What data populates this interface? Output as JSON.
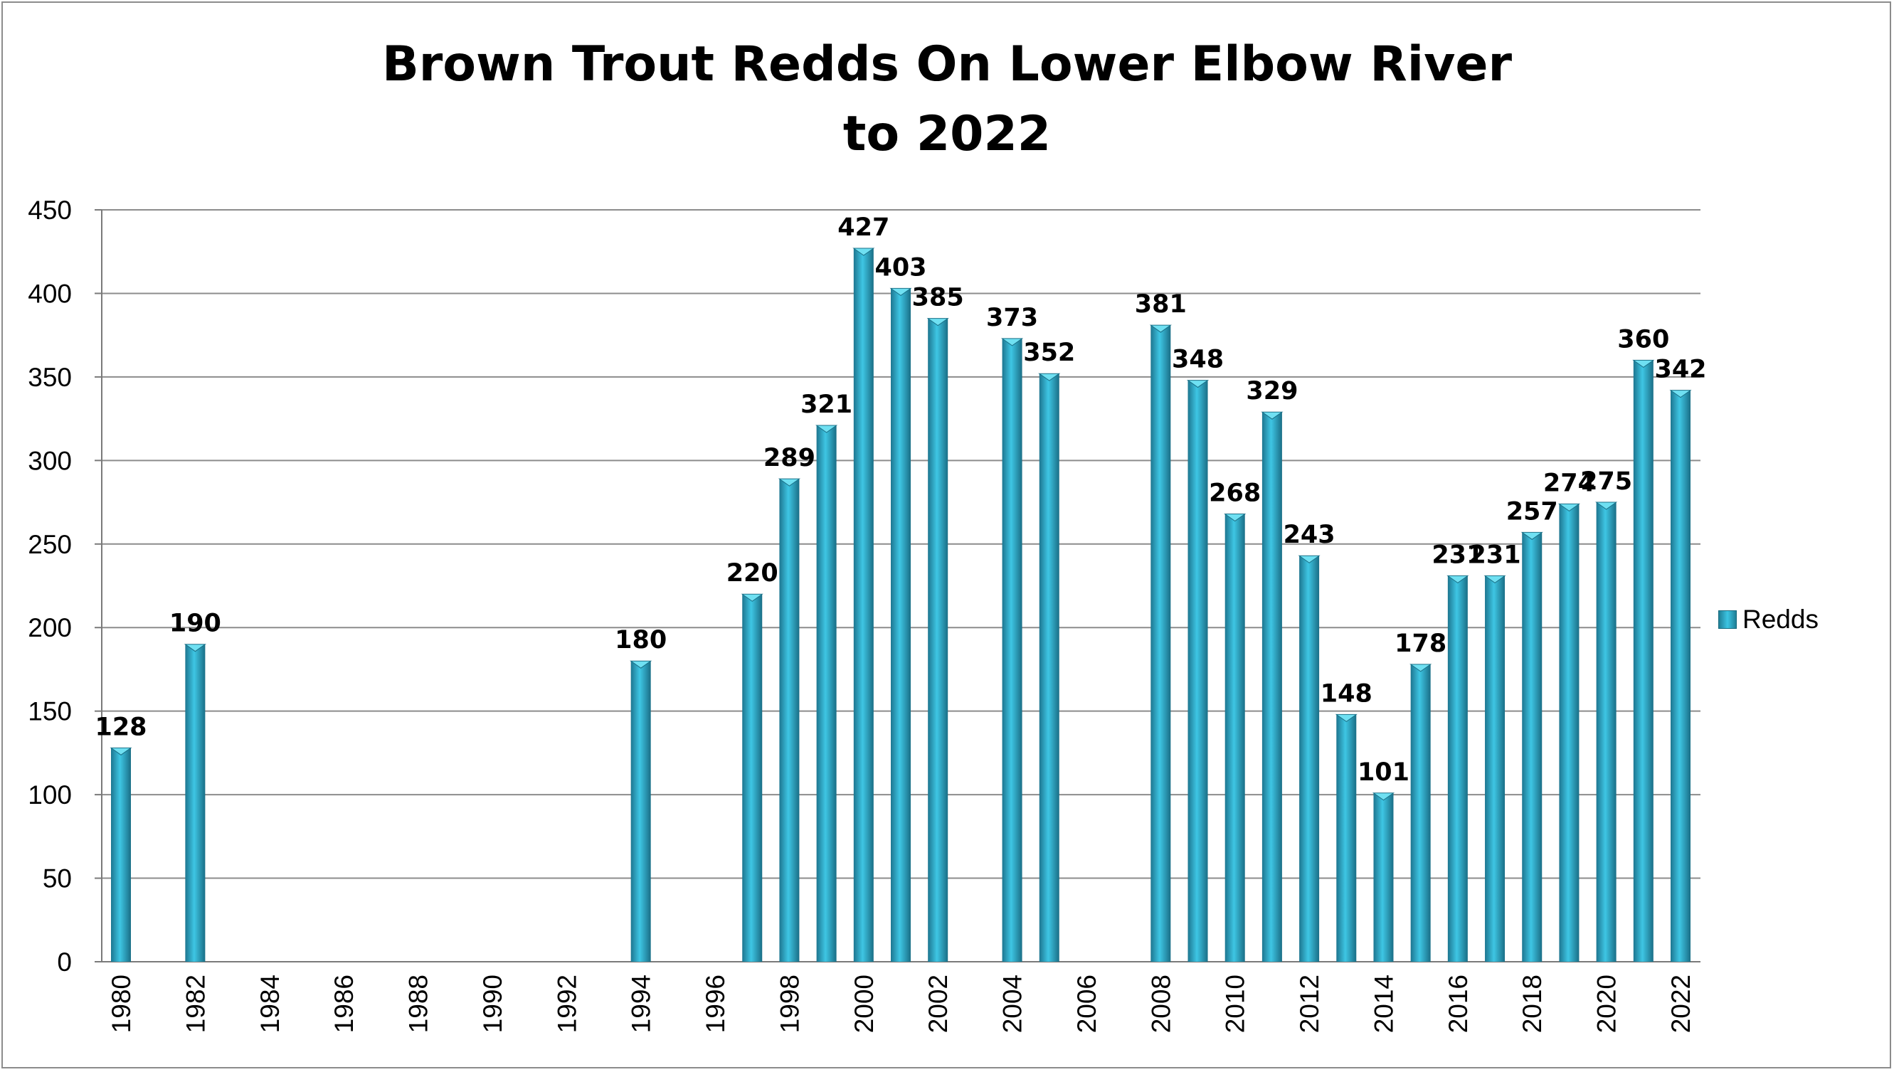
{
  "chart_data": {
    "type": "bar",
    "title_lines": [
      "Brown Trout Redds On Lower Elbow River",
      "to 2022"
    ],
    "xlabel": "",
    "ylabel": "",
    "ylim": [
      0,
      450
    ],
    "yticks": [
      0,
      50,
      100,
      150,
      200,
      250,
      300,
      350,
      400,
      450
    ],
    "xlim": [
      1980,
      2022
    ],
    "xticks": [
      1980,
      1982,
      1984,
      1986,
      1988,
      1990,
      1992,
      1994,
      1996,
      1998,
      2000,
      2002,
      2004,
      2006,
      2008,
      2010,
      2012,
      2014,
      2016,
      2018,
      2020,
      2022
    ],
    "grid": "horizontal",
    "legend_position": "right",
    "series": [
      {
        "name": "Redds",
        "color": "#2fb0cf",
        "points": [
          {
            "x": 1980,
            "y": 128
          },
          {
            "x": 1982,
            "y": 190
          },
          {
            "x": 1994,
            "y": 180
          },
          {
            "x": 1997,
            "y": 220
          },
          {
            "x": 1998,
            "y": 289
          },
          {
            "x": 1999,
            "y": 321
          },
          {
            "x": 2000,
            "y": 427
          },
          {
            "x": 2001,
            "y": 403
          },
          {
            "x": 2002,
            "y": 385
          },
          {
            "x": 2004,
            "y": 373
          },
          {
            "x": 2005,
            "y": 352
          },
          {
            "x": 2008,
            "y": 381
          },
          {
            "x": 2009,
            "y": 348
          },
          {
            "x": 2010,
            "y": 268
          },
          {
            "x": 2011,
            "y": 329
          },
          {
            "x": 2012,
            "y": 243
          },
          {
            "x": 2013,
            "y": 148
          },
          {
            "x": 2014,
            "y": 101
          },
          {
            "x": 2015,
            "y": 178
          },
          {
            "x": 2016,
            "y": 231
          },
          {
            "x": 2017,
            "y": 231
          },
          {
            "x": 2018,
            "y": 257
          },
          {
            "x": 2019,
            "y": 274
          },
          {
            "x": 2020,
            "y": 275
          },
          {
            "x": 2021,
            "y": 360
          },
          {
            "x": 2022,
            "y": 342
          }
        ]
      }
    ]
  }
}
